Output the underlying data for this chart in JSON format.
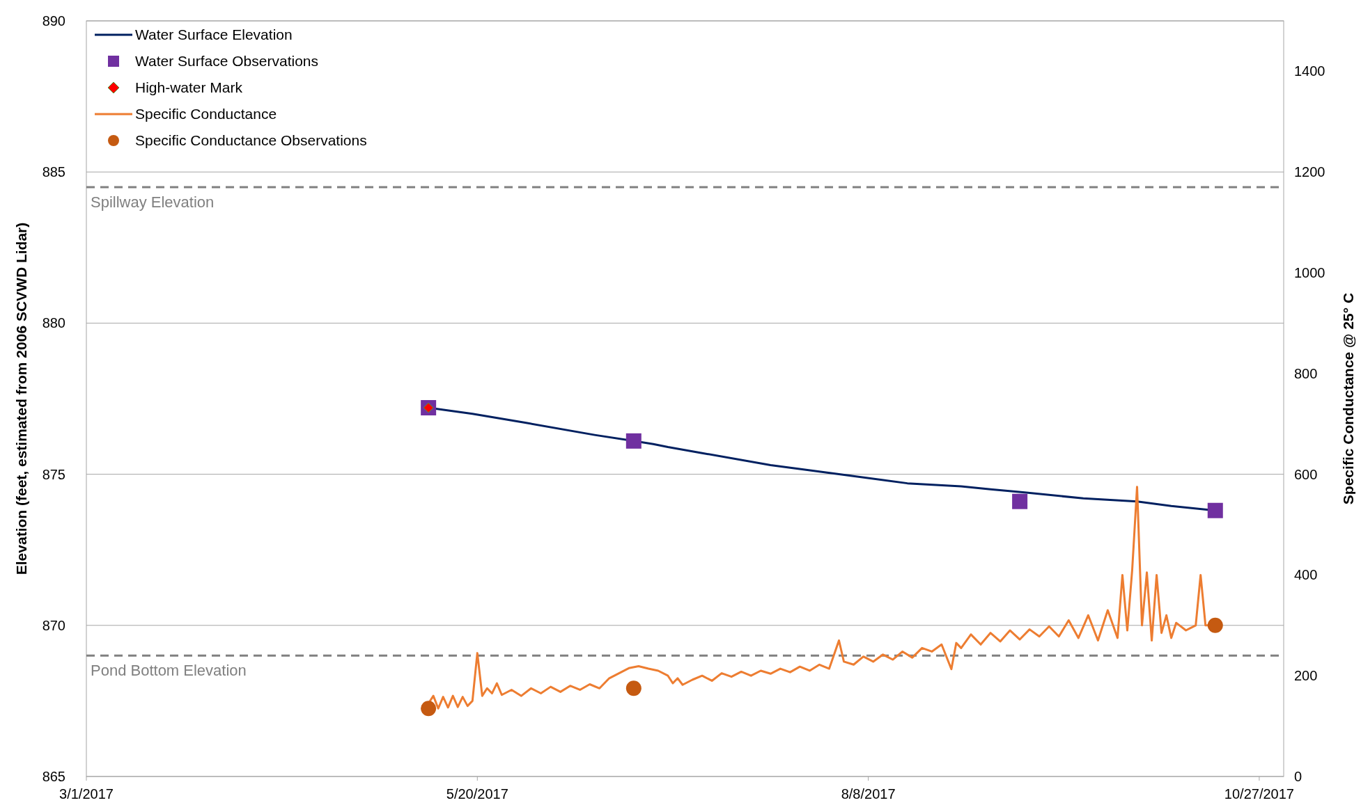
{
  "chart_data": {
    "type": "line",
    "xlabel": null,
    "ylabel": "Elevation (feet, estimated from 2006 SCVWD Lidar)",
    "y2label": "Specific Conductance @ 25° C",
    "xlim": [
      "2017-03-01",
      "2017-11-01"
    ],
    "xticks": [
      {
        "value": "2017-03-01",
        "label": "3/1/2017"
      },
      {
        "value": "2017-05-20",
        "label": "5/20/2017"
      },
      {
        "value": "2017-08-08",
        "label": "8/8/2017"
      },
      {
        "value": "2017-10-27",
        "label": "10/27/2017"
      }
    ],
    "ylim": [
      865,
      890
    ],
    "yticks": [
      865,
      870,
      875,
      880,
      885,
      890
    ],
    "y2lim": [
      0,
      1500
    ],
    "y2ticks": [
      0,
      200,
      400,
      600,
      800,
      1000,
      1200,
      1400
    ],
    "grid": "y",
    "legend": "top left",
    "ref_lines": [
      {
        "axis": "y",
        "value": 884.5,
        "label": "Spillway Elevation",
        "color": "#808080",
        "line_style": "dashed"
      },
      {
        "axis": "y",
        "value": 869,
        "label": "Pond Bottom Elevation",
        "color": "#808080",
        "line_style": "dashed"
      }
    ],
    "series": [
      {
        "name": "Water Surface Elevation",
        "color": "#002060",
        "marker": "none",
        "x": [
          "2017-05-10",
          "2017-05-19",
          "2017-05-30",
          "2017-06-13",
          "2017-06-21",
          "2017-06-25",
          "2017-06-28",
          "2017-07-05",
          "2017-07-19",
          "2017-08-02",
          "2017-08-16",
          "2017-08-27",
          "2017-09-02",
          "2017-09-09",
          "2017-09-21",
          "2017-10-02",
          "2017-10-09",
          "2017-10-18"
        ],
        "values": [
          877.2,
          877.0,
          876.7,
          876.3,
          876.1,
          876.0,
          875.9,
          875.7,
          875.3,
          875.0,
          874.7,
          874.6,
          874.5,
          874.4,
          874.2,
          874.1,
          873.95,
          873.8
        ]
      },
      {
        "name": "Water Surface Observations",
        "type": "scatter",
        "color": "#7030a0",
        "marker": "square",
        "x": [
          "2017-05-10",
          "2017-06-21",
          "2017-09-08",
          "2017-10-18"
        ],
        "values": [
          877.2,
          876.1,
          874.1,
          873.8
        ]
      },
      {
        "name": "High-water Mark",
        "type": "scatter",
        "color": "#ff0000",
        "marker": "diamond",
        "x": [
          "2017-05-10"
        ],
        "values": [
          877.2
        ]
      },
      {
        "name": "Specific Conductance",
        "color": "#ed7d31",
        "marker": "none",
        "axis": "y2",
        "x": [
          "2017-05-10",
          "2017-05-11",
          "2017-05-12",
          "2017-05-13",
          "2017-05-14",
          "2017-05-15",
          "2017-05-16",
          "2017-05-17",
          "2017-05-18",
          "2017-05-19",
          "2017-05-20",
          "2017-05-21",
          "2017-05-22",
          "2017-05-23",
          "2017-05-24",
          "2017-05-25",
          "2017-05-27",
          "2017-05-29",
          "2017-05-31",
          "2017-06-02",
          "2017-06-04",
          "2017-06-06",
          "2017-06-08",
          "2017-06-10",
          "2017-06-12",
          "2017-06-14",
          "2017-06-16",
          "2017-06-18",
          "2017-06-20",
          "2017-06-22",
          "2017-06-24",
          "2017-06-26",
          "2017-06-28",
          "2017-06-29",
          "2017-06-30",
          "2017-07-01",
          "2017-07-03",
          "2017-07-05",
          "2017-07-07",
          "2017-07-09",
          "2017-07-11",
          "2017-07-13",
          "2017-07-15",
          "2017-07-17",
          "2017-07-19",
          "2017-07-21",
          "2017-07-23",
          "2017-07-25",
          "2017-07-27",
          "2017-07-29",
          "2017-07-31",
          "2017-08-02",
          "2017-08-03",
          "2017-08-05",
          "2017-08-07",
          "2017-08-09",
          "2017-08-11",
          "2017-08-13",
          "2017-08-15",
          "2017-08-17",
          "2017-08-19",
          "2017-08-21",
          "2017-08-23",
          "2017-08-25",
          "2017-08-26",
          "2017-08-27",
          "2017-08-29",
          "2017-08-31",
          "2017-09-02",
          "2017-09-04",
          "2017-09-06",
          "2017-09-08",
          "2017-09-10",
          "2017-09-12",
          "2017-09-14",
          "2017-09-16",
          "2017-09-18",
          "2017-09-20",
          "2017-09-22",
          "2017-09-24",
          "2017-09-26",
          "2017-09-28",
          "2017-09-29",
          "2017-09-30",
          "2017-10-01",
          "2017-10-02",
          "2017-10-03",
          "2017-10-04",
          "2017-10-05",
          "2017-10-06",
          "2017-10-07",
          "2017-10-08",
          "2017-10-09",
          "2017-10-10",
          "2017-10-12",
          "2017-10-13",
          "2017-10-14",
          "2017-10-15",
          "2017-10-16",
          "2017-10-18"
        ],
        "values": [
          145,
          160,
          135,
          158,
          137,
          160,
          138,
          158,
          140,
          150,
          245,
          160,
          175,
          165,
          185,
          162,
          172,
          160,
          175,
          165,
          178,
          168,
          180,
          172,
          183,
          175,
          195,
          205,
          215,
          219,
          214,
          210,
          200,
          185,
          195,
          182,
          192,
          200,
          190,
          205,
          198,
          208,
          200,
          210,
          204,
          214,
          207,
          218,
          210,
          222,
          214,
          270,
          228,
          222,
          238,
          228,
          242,
          232,
          248,
          236,
          255,
          248,
          262,
          213,
          265,
          255,
          282,
          262,
          285,
          268,
          290,
          272,
          292,
          278,
          298,
          278,
          310,
          275,
          320,
          270,
          330,
          275,
          400,
          290,
          410,
          575,
          300,
          405,
          270,
          400,
          285,
          320,
          275,
          305,
          290,
          295,
          300,
          400,
          300,
          300
        ]
      },
      {
        "name": "Specific Conductance Observations",
        "type": "scatter",
        "color": "#c55a11",
        "marker": "circle",
        "axis": "y2",
        "x": [
          "2017-05-10",
          "2017-06-21",
          "2017-10-18"
        ],
        "values": [
          135,
          175,
          300
        ]
      }
    ]
  }
}
